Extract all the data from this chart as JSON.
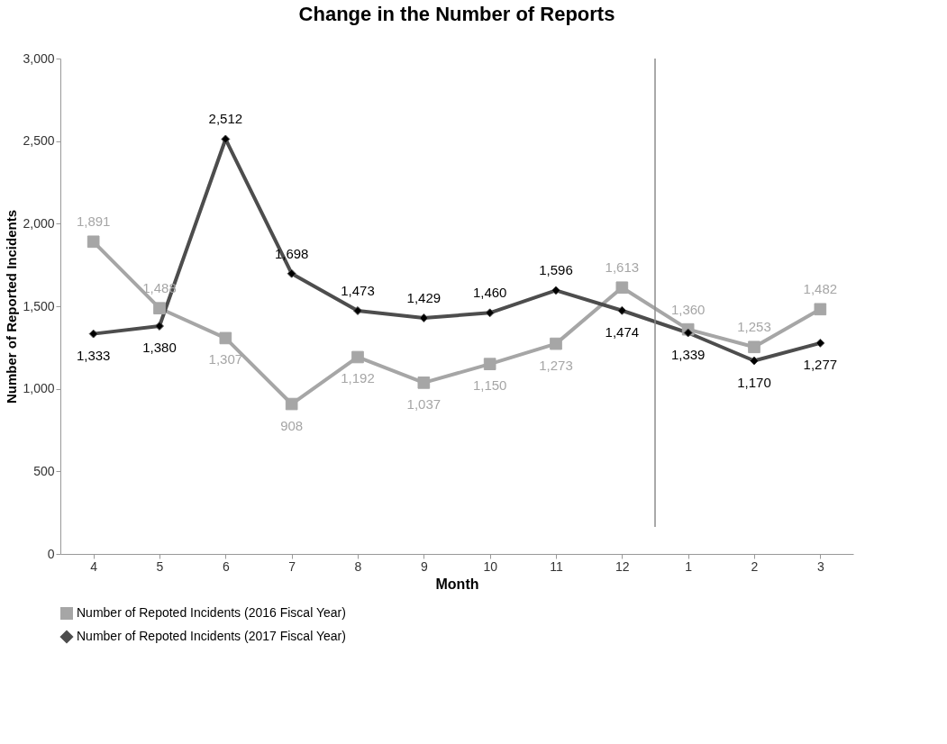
{
  "chart_data": {
    "type": "line",
    "title": "Change in the Number of  Reports",
    "xlabel": "Month",
    "ylabel": "Number of Reported Incidents",
    "categories": [
      "4",
      "5",
      "6",
      "7",
      "8",
      "9",
      "10",
      "11",
      "12",
      "1",
      "2",
      "3"
    ],
    "series": [
      {
        "name": "Number of Repoted Incidents  (2016 Fiscal Year)",
        "color": "#a6a6a6",
        "marker": "square",
        "line_style": "solid",
        "values": [
          1891,
          1488,
          1307,
          908,
          1192,
          1037,
          1150,
          1273,
          1613,
          1360,
          1253,
          1482
        ],
        "value_labels": [
          "1,891",
          "1,488",
          "1,307",
          "908",
          "1,192",
          "1,037",
          "1,150",
          "1,273",
          "1,613",
          "1,360",
          "1,253",
          "1,482"
        ]
      },
      {
        "name": "Number of Repoted Incidents  (2017 Fiscal Year)",
        "color": "#4d4d4d",
        "marker": "diamond",
        "line_style": "solid",
        "values": [
          1333,
          1380,
          2512,
          1698,
          1473,
          1429,
          1460,
          1596,
          1474,
          1339,
          1170,
          1277
        ],
        "value_labels": [
          "1,333",
          "1,380",
          "2,512",
          "1,698",
          "1,473",
          "1,429",
          "1,460",
          "1,596",
          "1,474",
          "1,339",
          "1,170",
          "1,277"
        ]
      }
    ],
    "ylim": [
      0,
      3000
    ],
    "yticks": [
      0,
      {
        "value": 500,
        "label": "500"
      },
      {
        "value": 1000,
        "label": "1,000"
      },
      {
        "value": 1500,
        "label": "1,500"
      },
      {
        "value": 2000,
        "label": "2,000"
      },
      {
        "value": 2500,
        "label": "2,500"
      },
      {
        "value": 3000,
        "label": "3,000"
      }
    ],
    "grid": false,
    "legend": "bottom"
  }
}
